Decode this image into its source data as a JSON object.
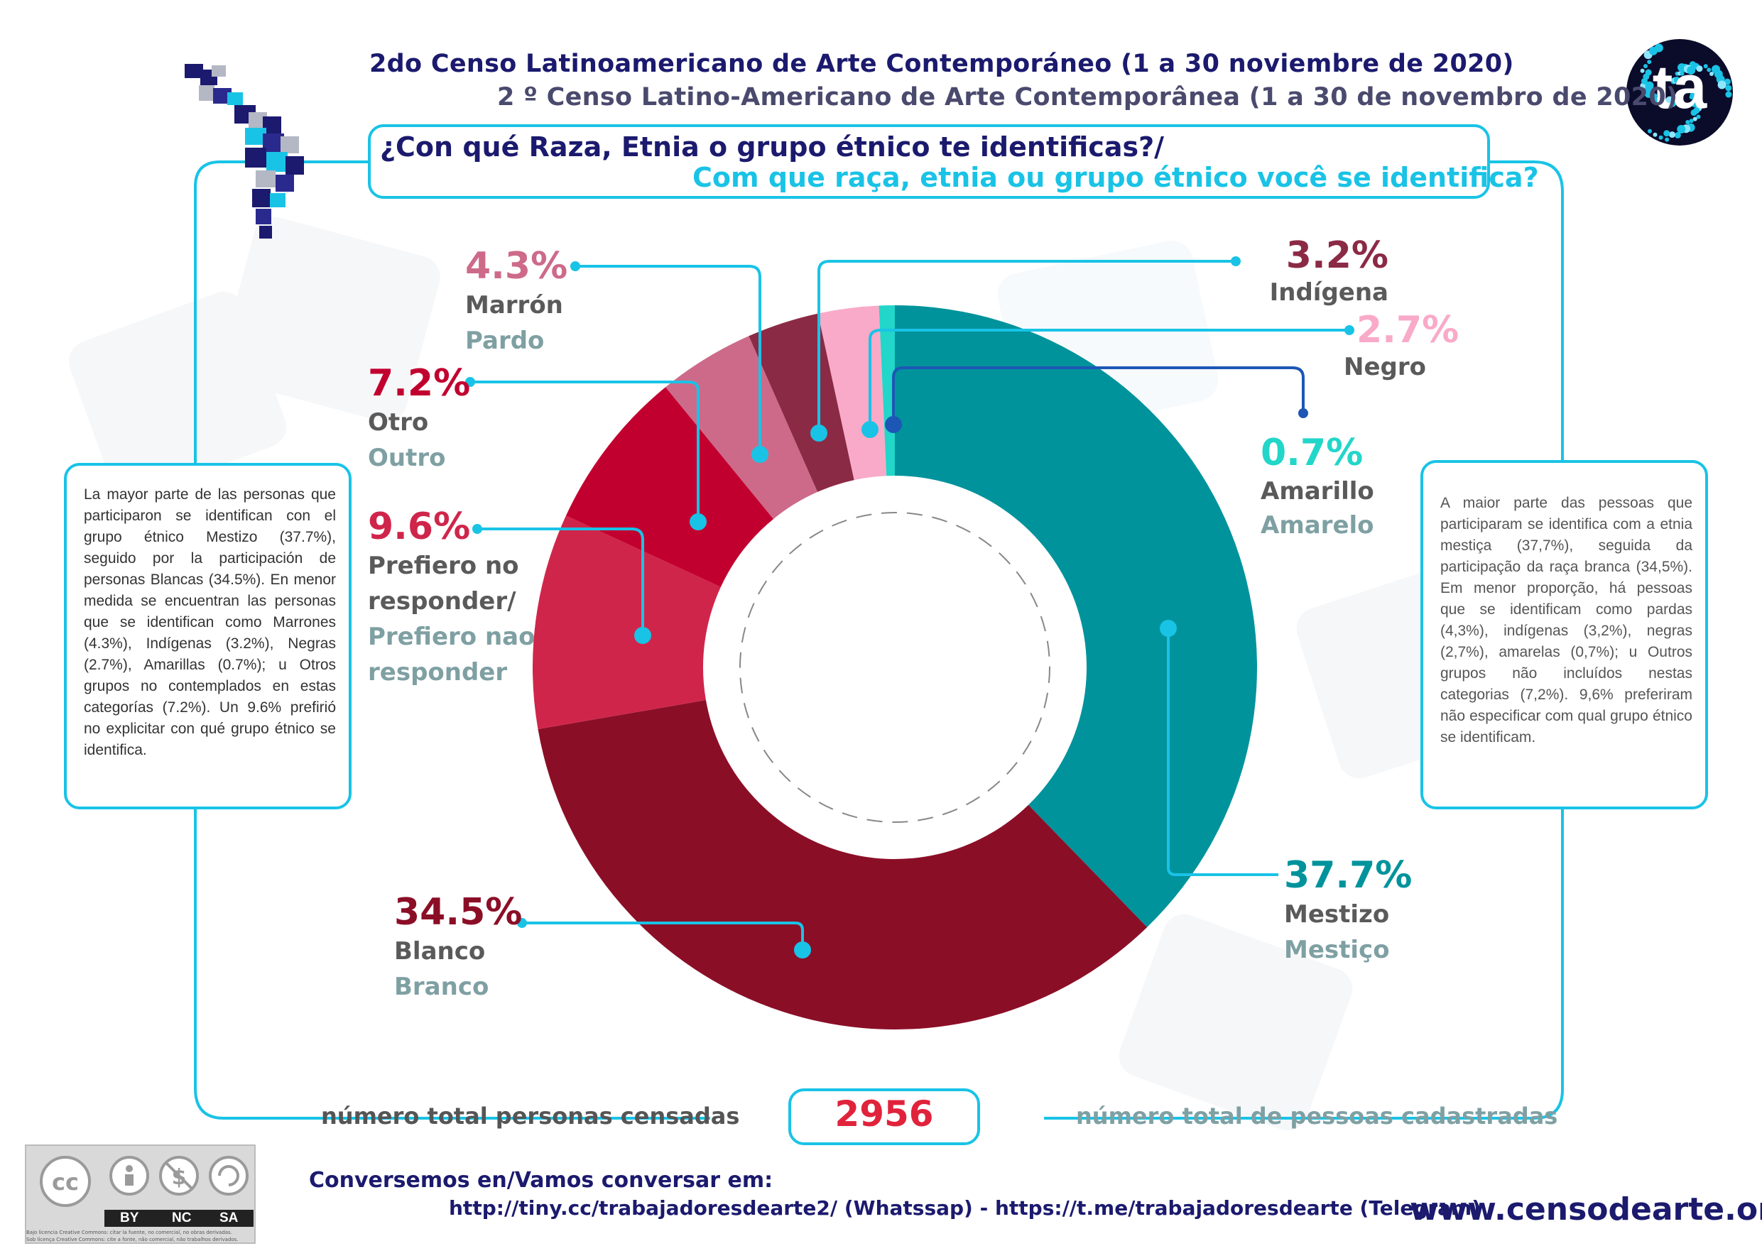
{
  "header": {
    "title_es": "2do Censo Latinoamericano de Arte Contemporáneo (1 a 30 noviembre de 2020)",
    "title_pt": "2 º Censo Latino-Americano de Arte Contemporânea (1 a 30 de novembro de 2020)",
    "logo_text": "ta"
  },
  "question": {
    "es": "¿Con qué Raza, Etnia o grupo étnico te identificas?/",
    "pt": "Com que raça, etnia ou grupo étnico você se identifica?"
  },
  "text_left": "La mayor parte de las personas que participaron se identifican con el grupo étnico Mestizo (37.7%), seguido por la participación de personas Blancas (34.5%). En menor medida se encuentran las personas que se identifican como Marrones (4.3%), Indígenas (3.2%), Negras (2.7%), Amarillas (0.7%); u Otros grupos no contemplados en estas categorías (7.2%). Un 9.6% prefirió no explicitar con qué grupo étnico se identifica.",
  "text_right": "A maior parte das pessoas que participaram se identifica com a etnia mestiça (37,7%), seguida da participação da raça branca (34,5%). Em menor proporção, há pessoas que se identificam como pardas (4,3%), indígenas (3,2%), negras (2,7%), amarelas (0,7%); u Outros grupos não incluídos nestas categorias (7,2%). 9,6% preferiram não especificar com qual grupo étnico se identificam.",
  "chart_data": {
    "type": "pie",
    "donut": true,
    "slices": [
      {
        "pct_label": "37.7%",
        "value": 37.7,
        "label_es": "Mestizo",
        "label_pt": "Mestiço",
        "color": "#00939c"
      },
      {
        "pct_label": "34.5%",
        "value": 34.5,
        "label_es": "Blanco",
        "label_pt": "Branco",
        "color": "#8b0e27"
      },
      {
        "pct_label": "9.6%",
        "value": 9.6,
        "label_es": "Prefiero no responder/",
        "label_pt": "Prefiero nao responder",
        "color": "#d0254b"
      },
      {
        "pct_label": "7.2%",
        "value": 7.2,
        "label_es": "Otro",
        "label_pt": "Outro",
        "color": "#c2002f"
      },
      {
        "pct_label": "4.3%",
        "value": 4.3,
        "label_es": "Marrón",
        "label_pt": "Pardo",
        "color": "#cd6a8a"
      },
      {
        "pct_label": "3.2%",
        "value": 3.2,
        "label_es": "Indígena",
        "label_pt": "",
        "color": "#8b2a45"
      },
      {
        "pct_label": "2.7%",
        "value": 2.7,
        "label_es": "Negro",
        "label_pt": "",
        "color": "#f9aac8"
      },
      {
        "pct_label": "0.7%",
        "value": 0.7,
        "label_es": "Amarillo",
        "label_pt": "Amarelo",
        "color": "#22d6c9"
      }
    ]
  },
  "labels": {
    "mestizo": {
      "pct": "37.7%",
      "es": "Mestizo",
      "pt": "Mestiço"
    },
    "blanco": {
      "pct": "34.5%",
      "es": "Blanco",
      "pt": "Branco"
    },
    "prefiero": {
      "pct": "9.6%",
      "es1": "Prefiero no",
      "es2": "responder/",
      "pt1": "Prefiero nao",
      "pt2": "responder"
    },
    "otro": {
      "pct": "7.2%",
      "es": "Otro",
      "pt": "Outro"
    },
    "marron": {
      "pct": "4.3%",
      "es": "Marrón",
      "pt": "Pardo"
    },
    "indigena": {
      "pct": "3.2%",
      "es": "Indígena"
    },
    "negro": {
      "pct": "2.7%",
      "es": "Negro"
    },
    "amarillo": {
      "pct": "0.7%",
      "es": "Amarillo",
      "pt": "Amarelo"
    }
  },
  "totals": {
    "label_es": "número total personas censadas",
    "value": "2956",
    "label_pt": "número total de pessoas cadastradas"
  },
  "footer": {
    "conversemos": "Conversemos en/Vamos conversar em:",
    "links": "http://tiny.cc/trabajadoresdearte2/ (Whatssap) - https://t.me/trabajadoresdearte (Telegram)",
    "website": "www.censodearte.org",
    "license_badges": [
      "BY",
      "NC",
      "SA"
    ],
    "license_es": "Bajo licencia Creative Commons: citar la fuente, no comercial, no obras derivadas.",
    "license_pt": "Sob licença Creative Commons: cite a fonte, não comercial, não trabalhos derivados."
  },
  "colors": {
    "navy": "#1b1a6e",
    "cyan": "#19c3e6",
    "teal": "#00939c",
    "red": "#e0233b"
  }
}
